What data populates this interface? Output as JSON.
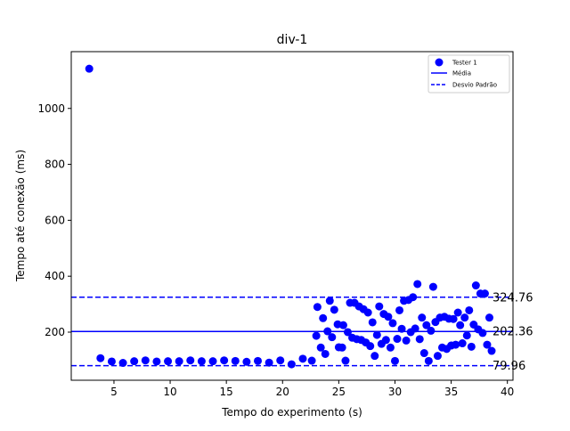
{
  "chart_data": {
    "type": "scatter",
    "title": "div-1",
    "xlabel": "Tempo do experimento (s)",
    "ylabel": "Tempo até conexão (ms)",
    "xlim": [
      1.2,
      40.5
    ],
    "ylim": [
      28,
      1203
    ],
    "xticks": [
      5,
      10,
      15,
      20,
      25,
      30,
      35,
      40
    ],
    "yticks": [
      200,
      400,
      600,
      800,
      1000
    ],
    "grid": false,
    "legend_position": "top-right",
    "colors": {
      "points": "#0000ff",
      "lines": "#0000ff"
    },
    "series": [
      {
        "name": "Tester 1",
        "points": [
          [
            2.8,
            1142
          ],
          [
            3.8,
            107
          ],
          [
            4.8,
            95
          ],
          [
            5.8,
            90
          ],
          [
            6.8,
            96
          ],
          [
            7.8,
            99
          ],
          [
            8.8,
            95
          ],
          [
            9.8,
            96
          ],
          [
            10.8,
            96
          ],
          [
            11.8,
            99
          ],
          [
            12.8,
            96
          ],
          [
            13.8,
            96
          ],
          [
            14.8,
            99
          ],
          [
            15.8,
            97
          ],
          [
            16.8,
            94
          ],
          [
            17.8,
            97
          ],
          [
            18.8,
            91
          ],
          [
            19.8,
            99
          ],
          [
            20.8,
            85
          ],
          [
            21.8,
            105
          ],
          [
            22.6,
            98
          ],
          [
            23.0,
            187
          ],
          [
            23.1,
            290
          ],
          [
            23.4,
            145
          ],
          [
            23.6,
            250
          ],
          [
            23.8,
            122
          ],
          [
            24.0,
            203
          ],
          [
            24.2,
            312
          ],
          [
            24.4,
            182
          ],
          [
            24.6,
            280
          ],
          [
            24.9,
            228
          ],
          [
            25.0,
            146
          ],
          [
            25.3,
            145
          ],
          [
            25.4,
            225
          ],
          [
            25.6,
            98
          ],
          [
            25.8,
            200
          ],
          [
            26.0,
            305
          ],
          [
            26.2,
            180
          ],
          [
            26.4,
            305
          ],
          [
            26.6,
            175
          ],
          [
            26.8,
            292
          ],
          [
            27.0,
            172
          ],
          [
            27.2,
            282
          ],
          [
            27.4,
            163
          ],
          [
            27.6,
            270
          ],
          [
            27.8,
            150
          ],
          [
            28.0,
            235
          ],
          [
            28.2,
            115
          ],
          [
            28.4,
            190
          ],
          [
            28.6,
            292
          ],
          [
            28.8,
            158
          ],
          [
            29.0,
            265
          ],
          [
            29.2,
            172
          ],
          [
            29.4,
            255
          ],
          [
            29.6,
            145
          ],
          [
            29.8,
            232
          ],
          [
            30.0,
            97
          ],
          [
            30.2,
            176
          ],
          [
            30.4,
            278
          ],
          [
            30.6,
            212
          ],
          [
            30.8,
            312
          ],
          [
            31.0,
            170
          ],
          [
            31.2,
            315
          ],
          [
            31.4,
            200
          ],
          [
            31.6,
            325
          ],
          [
            31.8,
            213
          ],
          [
            32.0,
            372
          ],
          [
            32.2,
            175
          ],
          [
            32.4,
            252
          ],
          [
            32.6,
            125
          ],
          [
            32.8,
            225
          ],
          [
            33.0,
            97
          ],
          [
            33.2,
            205
          ],
          [
            33.4,
            362
          ],
          [
            33.6,
            236
          ],
          [
            33.8,
            115
          ],
          [
            34.0,
            252
          ],
          [
            34.2,
            145
          ],
          [
            34.4,
            255
          ],
          [
            34.6,
            140
          ],
          [
            34.8,
            248
          ],
          [
            35.0,
            152
          ],
          [
            35.2,
            247
          ],
          [
            35.4,
            155
          ],
          [
            35.6,
            270
          ],
          [
            35.8,
            225
          ],
          [
            36.0,
            160
          ],
          [
            36.2,
            252
          ],
          [
            36.4,
            188
          ],
          [
            36.6,
            278
          ],
          [
            36.8,
            148
          ],
          [
            37.0,
            227
          ],
          [
            37.2,
            367
          ],
          [
            37.4,
            210
          ],
          [
            37.6,
            338
          ],
          [
            37.8,
            197
          ],
          [
            38.0,
            338
          ],
          [
            38.2,
            155
          ],
          [
            38.4,
            252
          ],
          [
            38.6,
            133
          ]
        ]
      }
    ],
    "reference_lines": [
      {
        "name": "Média",
        "value": 202.36,
        "label": "202.36",
        "style": "solid"
      },
      {
        "name": "Desvio Padrão",
        "value": 324.76,
        "label": "324.76",
        "style": "dashed"
      },
      {
        "name": "Desvio Padrão",
        "value": 79.96,
        "label": "79.96",
        "style": "dashed"
      }
    ],
    "legend": [
      {
        "label": "Tester 1",
        "marker": "dot"
      },
      {
        "label": "Média",
        "marker": "solid-line"
      },
      {
        "label": "Desvio Padrão",
        "marker": "dashed-line"
      }
    ]
  }
}
